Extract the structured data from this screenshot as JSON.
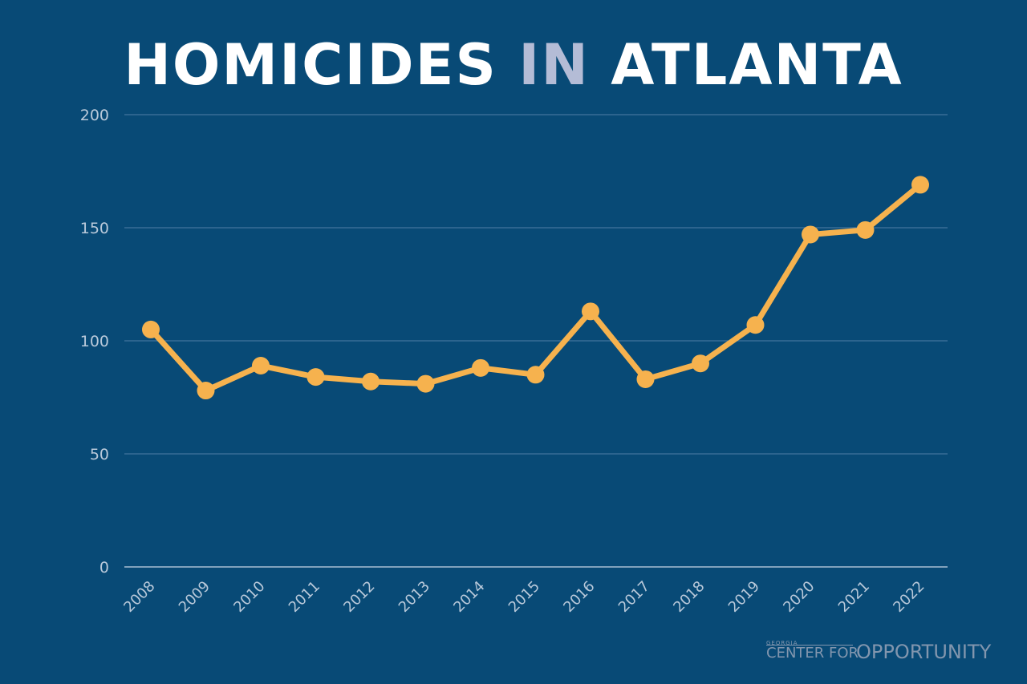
{
  "title": {
    "part1": "HOMICIDES",
    "part2": "IN",
    "part3": "ATLANTA"
  },
  "colors": {
    "background": "#084a76",
    "line": "#f6b24e",
    "grid": "#4f7fa6",
    "tick_text": "#b9c9da",
    "title": "#ffffff",
    "title_accent": "#b4bcd6"
  },
  "logo": {
    "line1": "GEORGIA",
    "line2": "CENTER FOR",
    "line3": "OPPORTUNITY"
  },
  "chart_data": {
    "type": "line",
    "title": "HOMICIDES IN ATLANTA",
    "xlabel": "",
    "ylabel": "",
    "categories": [
      "2008",
      "2009",
      "2010",
      "2011",
      "2012",
      "2013",
      "2014",
      "2015",
      "2016",
      "2017",
      "2018",
      "2019",
      "2020",
      "2021",
      "2022"
    ],
    "series": [
      {
        "values": [
          105,
          78,
          89,
          84,
          82,
          81,
          88,
          85,
          113,
          83,
          90,
          107,
          147,
          149,
          169
        ]
      }
    ],
    "ylim": [
      0,
      200
    ],
    "yticks": [
      0,
      50,
      100,
      150,
      200
    ],
    "grid": true,
    "markers": true
  }
}
